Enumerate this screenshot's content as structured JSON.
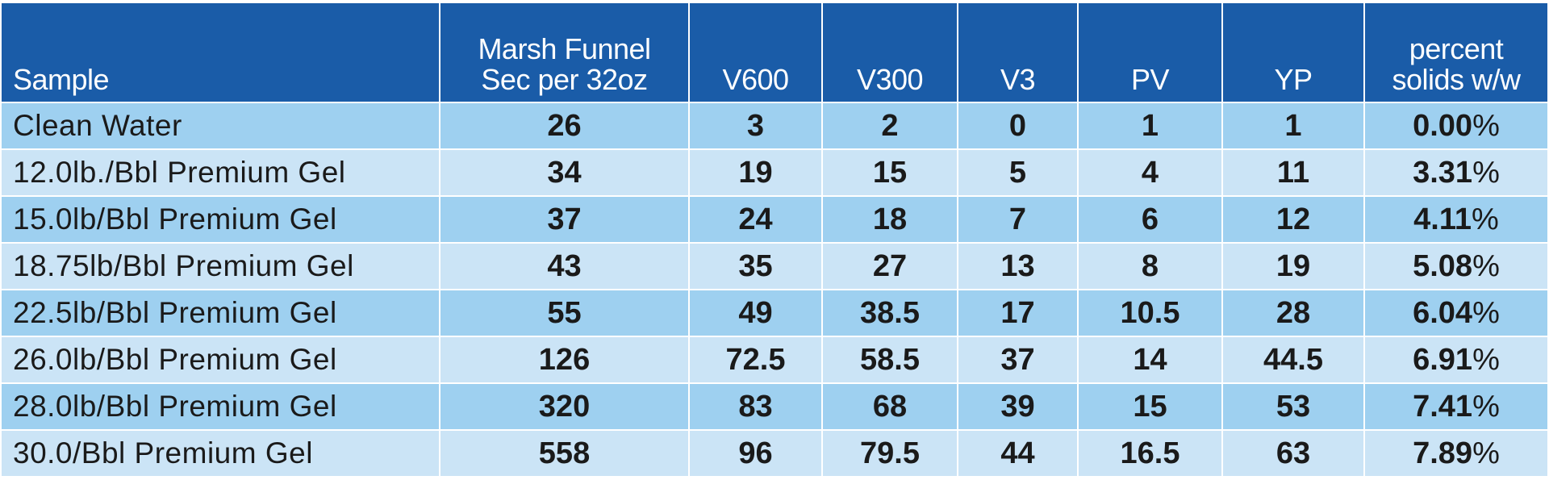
{
  "chart_data": {
    "type": "table",
    "columns": [
      {
        "lines": [
          "Sample"
        ]
      },
      {
        "lines": [
          "Marsh Funnel",
          "Sec per 32oz"
        ]
      },
      {
        "lines": [
          "V600"
        ]
      },
      {
        "lines": [
          "V300"
        ]
      },
      {
        "lines": [
          "V3"
        ]
      },
      {
        "lines": [
          "PV"
        ]
      },
      {
        "lines": [
          "YP"
        ]
      },
      {
        "lines": [
          "percent",
          "solids w/w"
        ]
      }
    ],
    "rows": [
      [
        "Clean Water",
        "26",
        "3",
        "2",
        "0",
        "1",
        "1",
        "0.00"
      ],
      [
        "12.0lb./Bbl Premium Gel",
        "34",
        "19",
        "15",
        "5",
        "4",
        "11",
        "3.31"
      ],
      [
        "15.0lb/Bbl Premium Gel",
        "37",
        "24",
        "18",
        "7",
        "6",
        "12",
        "4.11"
      ],
      [
        "18.75lb/Bbl Premium Gel",
        "43",
        "35",
        "27",
        "13",
        "8",
        "19",
        "5.08"
      ],
      [
        "22.5lb/Bbl Premium Gel",
        "55",
        "49",
        "38.5",
        "17",
        "10.5",
        "28",
        "6.04"
      ],
      [
        "26.0lb/Bbl Premium Gel",
        "126",
        "72.5",
        "58.5",
        "37",
        "14",
        "44.5",
        "6.91"
      ],
      [
        "28.0lb/Bbl Premium Gel",
        "320",
        "83",
        "68",
        "39",
        "15",
        "53",
        "7.41"
      ],
      [
        "30.0/Bbl Premium Gel",
        "558",
        "96",
        "79.5",
        "44",
        "16.5",
        "63",
        "7.89"
      ]
    ],
    "percent_sign": "%",
    "colors": {
      "header": "#1a5ca8",
      "row_dark": "#9ed0f0",
      "row_light": "#cbe4f6",
      "text": "#1a1a1a"
    }
  }
}
